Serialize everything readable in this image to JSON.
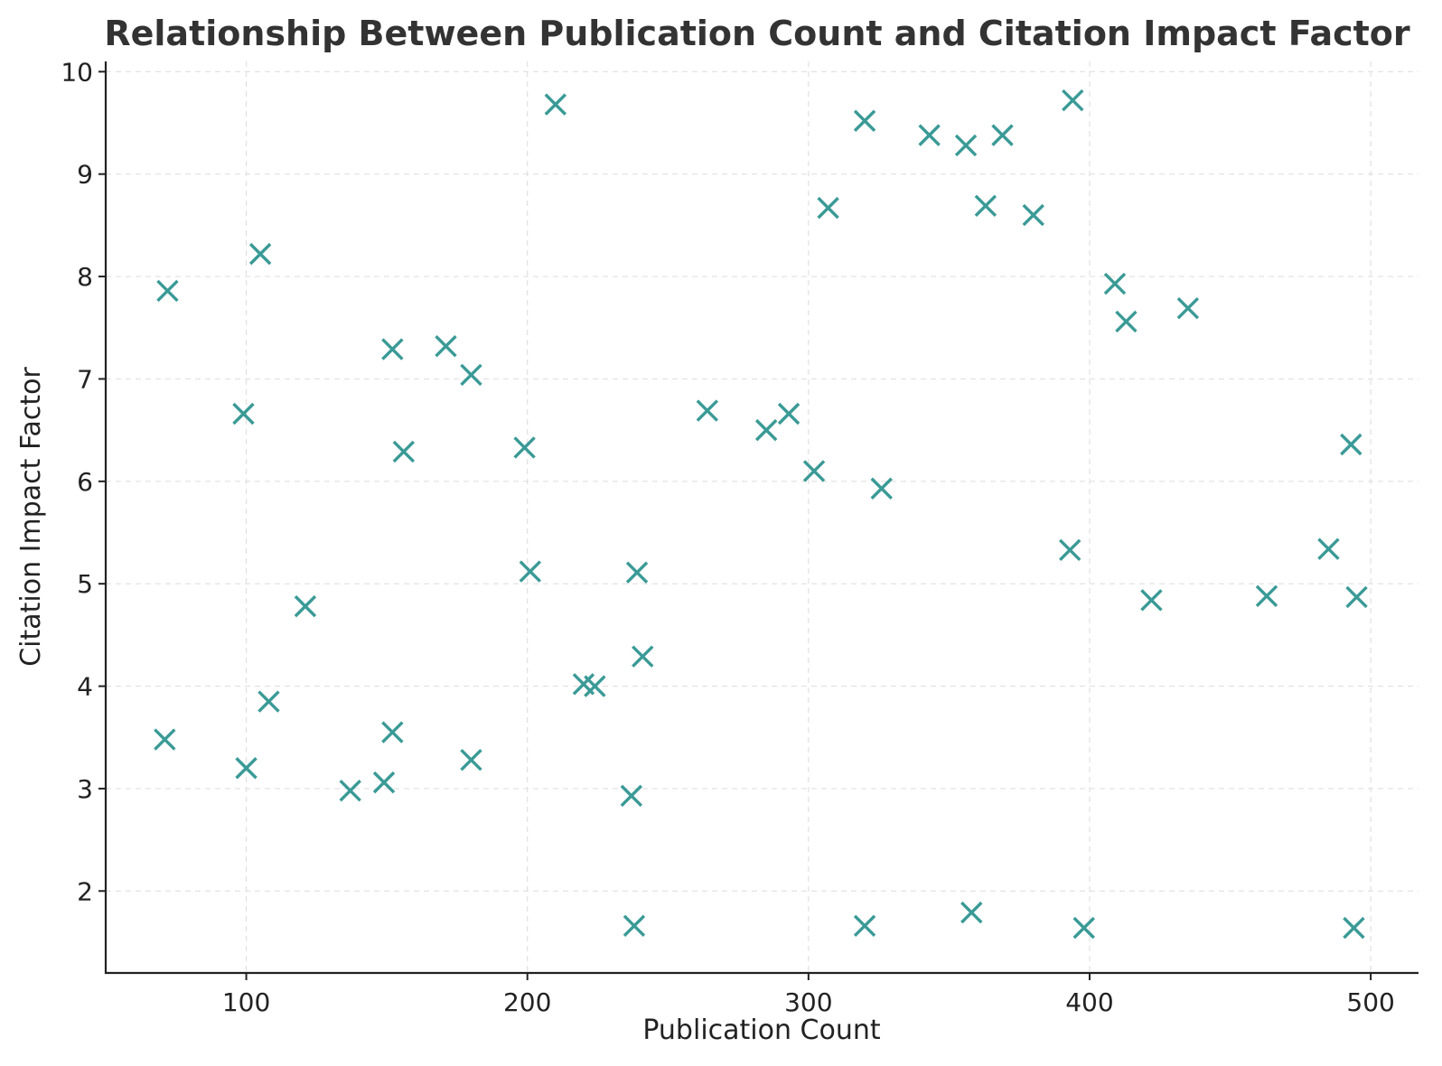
{
  "chart_data": {
    "type": "scatter",
    "title": "Relationship Between Publication Count and Citation Impact Factor",
    "xlabel": "Publication Count",
    "ylabel": "Citation Impact Factor",
    "xlim": [
      50,
      517
    ],
    "ylim": [
      1.2,
      10.1
    ],
    "xticks": [
      100,
      200,
      300,
      400,
      500
    ],
    "yticks": [
      2,
      3,
      4,
      5,
      6,
      7,
      8,
      9,
      10
    ],
    "grid": true,
    "marker": "x",
    "color": "#3a9a96",
    "points": [
      {
        "x": 72,
        "y": 7.86
      },
      {
        "x": 71,
        "y": 3.48
      },
      {
        "x": 99,
        "y": 6.66
      },
      {
        "x": 100,
        "y": 3.2
      },
      {
        "x": 105,
        "y": 8.22
      },
      {
        "x": 108,
        "y": 3.85
      },
      {
        "x": 121,
        "y": 4.78
      },
      {
        "x": 137,
        "y": 2.98
      },
      {
        "x": 149,
        "y": 3.06
      },
      {
        "x": 152,
        "y": 7.29
      },
      {
        "x": 152,
        "y": 3.55
      },
      {
        "x": 156,
        "y": 6.29
      },
      {
        "x": 171,
        "y": 7.32
      },
      {
        "x": 180,
        "y": 7.04
      },
      {
        "x": 180,
        "y": 3.28
      },
      {
        "x": 199,
        "y": 6.33
      },
      {
        "x": 201,
        "y": 5.12
      },
      {
        "x": 210,
        "y": 9.68
      },
      {
        "x": 220,
        "y": 4.02
      },
      {
        "x": 224,
        "y": 4.0
      },
      {
        "x": 237,
        "y": 2.93
      },
      {
        "x": 238,
        "y": 1.66
      },
      {
        "x": 239,
        "y": 5.11
      },
      {
        "x": 241,
        "y": 4.29
      },
      {
        "x": 264,
        "y": 6.69
      },
      {
        "x": 285,
        "y": 6.5
      },
      {
        "x": 293,
        "y": 6.66
      },
      {
        "x": 302,
        "y": 6.1
      },
      {
        "x": 307,
        "y": 8.67
      },
      {
        "x": 320,
        "y": 9.52
      },
      {
        "x": 320,
        "y": 1.66
      },
      {
        "x": 326,
        "y": 5.93
      },
      {
        "x": 343,
        "y": 9.38
      },
      {
        "x": 356,
        "y": 9.28
      },
      {
        "x": 358,
        "y": 1.79
      },
      {
        "x": 363,
        "y": 8.69
      },
      {
        "x": 369,
        "y": 9.38
      },
      {
        "x": 380,
        "y": 8.6
      },
      {
        "x": 393,
        "y": 5.33
      },
      {
        "x": 394,
        "y": 9.72
      },
      {
        "x": 398,
        "y": 1.64
      },
      {
        "x": 409,
        "y": 7.93
      },
      {
        "x": 413,
        "y": 7.56
      },
      {
        "x": 422,
        "y": 4.84
      },
      {
        "x": 435,
        "y": 7.69
      },
      {
        "x": 463,
        "y": 4.88
      },
      {
        "x": 485,
        "y": 5.34
      },
      {
        "x": 493,
        "y": 6.36
      },
      {
        "x": 495,
        "y": 4.87
      },
      {
        "x": 494,
        "y": 1.64
      }
    ]
  }
}
